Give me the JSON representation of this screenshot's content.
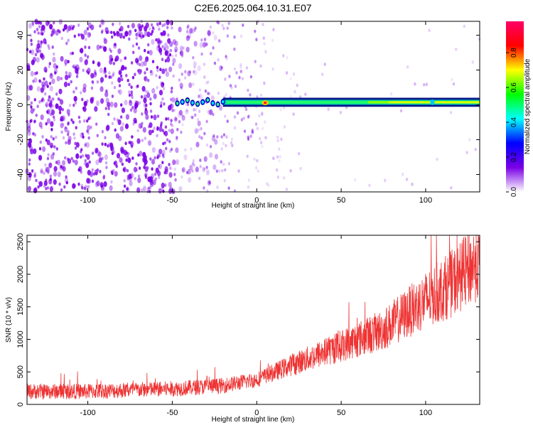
{
  "title": "C2E6.2025.064.10.31.E07",
  "chart_data": [
    {
      "type": "heatmap",
      "xlabel": "Height of straight line (km)",
      "ylabel": "Frequency (Hz)",
      "xlim": [
        -136,
        132
      ],
      "ylim": [
        -50,
        48
      ],
      "xticks": [
        -100,
        -50,
        0,
        50,
        100
      ],
      "yticks": [
        -40,
        -20,
        0,
        20,
        40
      ],
      "colorbar": {
        "label": "Normalized spectral amplitude",
        "range": [
          0,
          0.98
        ],
        "ticks": [
          "0.0",
          "0.2",
          "0.4",
          "0.6",
          "0.8"
        ],
        "colormap": "rainbow",
        "colors": [
          "#ffffff",
          "#7a00e6",
          "#0000ff",
          "#00ffff",
          "#00ff00",
          "#ffff00",
          "#ff0000",
          "#ff0066"
        ]
      },
      "ridge": {
        "frequency_hz": 1.5,
        "start_km": -47,
        "end_km": 132
      }
    },
    {
      "type": "line",
      "xlabel": "Height of straight line (km)",
      "ylabel": "SNR (10 * v/v)",
      "xlim": [
        -136,
        132
      ],
      "ylim": [
        0,
        2600
      ],
      "xticks": [
        -100,
        -50,
        0,
        50,
        100
      ],
      "yticks": [
        0,
        500,
        1000,
        1500,
        2000,
        2500
      ],
      "color": "#ee3333",
      "envelope_km": [
        -136,
        -100,
        -50,
        -20,
        0,
        20,
        50,
        75,
        100,
        115,
        132
      ],
      "envelope_snr": [
        200,
        200,
        240,
        290,
        380,
        600,
        900,
        1150,
        1600,
        1850,
        2220
      ]
    }
  ]
}
